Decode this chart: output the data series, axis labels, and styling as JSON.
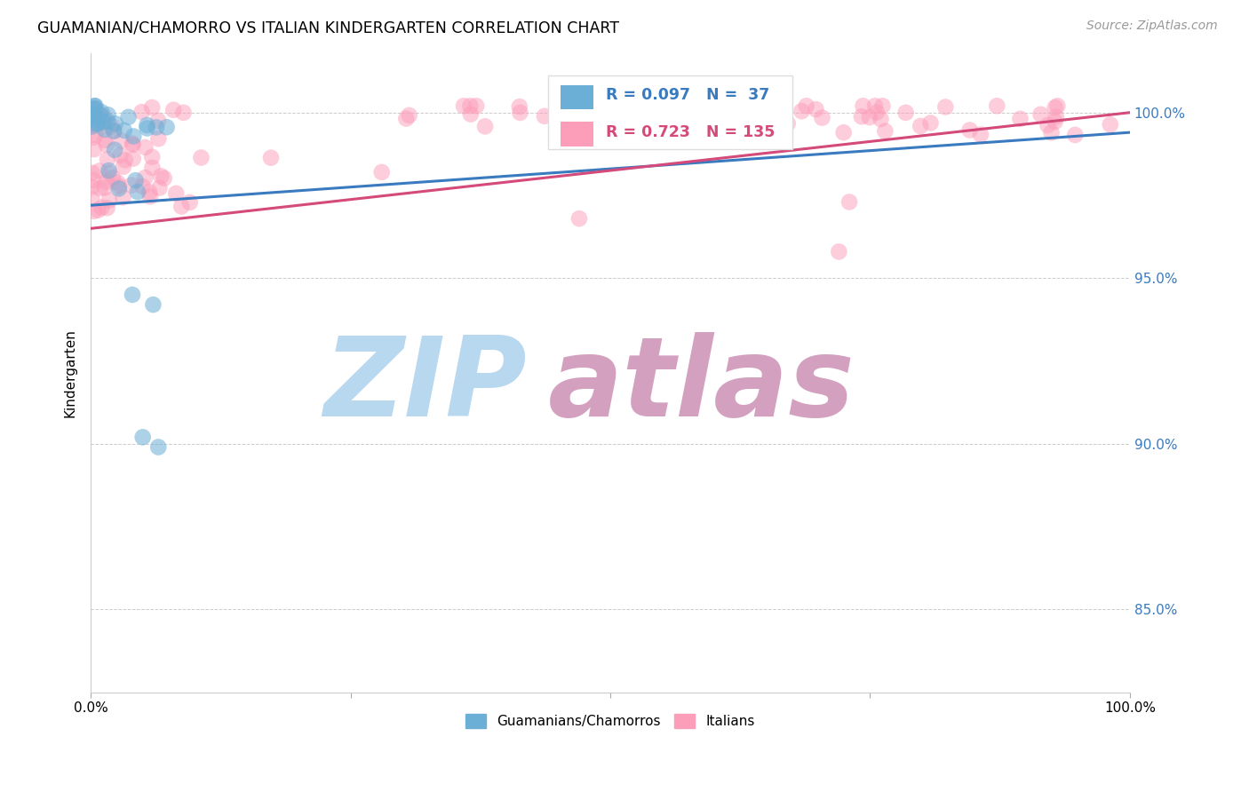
{
  "title": "GUAMANIAN/CHAMORRO VS ITALIAN KINDERGARTEN CORRELATION CHART",
  "source": "Source: ZipAtlas.com",
  "ylabel": "Kindergarten",
  "ytick_labels": [
    "85.0%",
    "90.0%",
    "95.0%",
    "100.0%"
  ],
  "ytick_values": [
    0.85,
    0.9,
    0.95,
    1.0
  ],
  "xlim": [
    0.0,
    1.0
  ],
  "ylim": [
    0.825,
    1.018
  ],
  "legend1_label": "Guamanians/Chamorros",
  "legend2_label": "Italians",
  "R_blue": 0.097,
  "N_blue": 37,
  "R_pink": 0.723,
  "N_pink": 135,
  "color_blue": "#6baed6",
  "color_pink": "#fc9dba",
  "color_trendline_blue": "#3a7abf",
  "color_trendline_pink": "#d44a7a",
  "watermark_zip": "ZIP",
  "watermark_atlas": "atlas",
  "watermark_color_zip": "#b8d8f0",
  "watermark_color_atlas": "#d4a0c0",
  "background_color": "#ffffff",
  "blue_trendline_x0": 0.0,
  "blue_trendline_y0": 0.972,
  "blue_trendline_x1": 1.0,
  "blue_trendline_y1": 0.994,
  "pink_trendline_x0": 0.0,
  "pink_trendline_y0": 0.965,
  "pink_trendline_x1": 1.0,
  "pink_trendline_y1": 1.0
}
